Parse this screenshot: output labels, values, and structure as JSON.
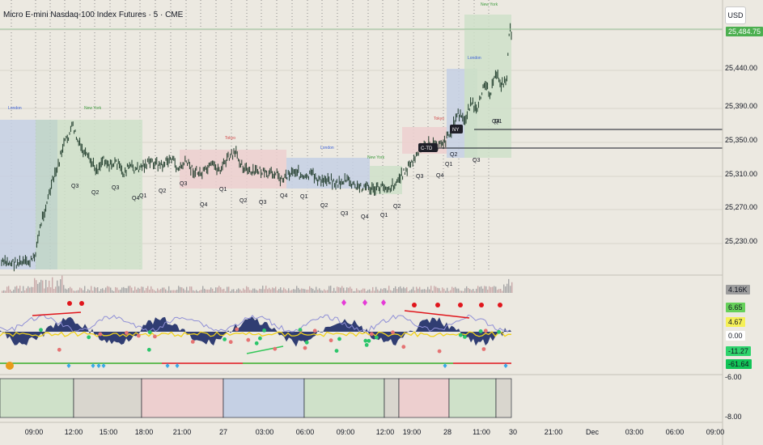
{
  "header": {
    "title": "Micro E-mini Nasdaq-100 Index Futures · 5 · CME"
  },
  "toolbar": {
    "currency": "USD"
  },
  "price_axis": {
    "labels": [
      "25,440.00",
      "25,390.00",
      "25,350.00",
      "25,310.00",
      "25,270.00",
      "25,230.00"
    ],
    "current_price_badge": "25,484.75"
  },
  "indicator_axis": {
    "volume_badge": "4.16K",
    "values": [
      {
        "text": "6.65",
        "bg": "#66d05a",
        "fg": "#131722"
      },
      {
        "text": "4.67",
        "bg": "#f5f056",
        "fg": "#131722"
      },
      {
        "text": "0.00",
        "bg": "#ffffff",
        "fg": "#131722"
      },
      {
        "text": "-11.27",
        "bg": "#2fd36d",
        "fg": "#131722"
      },
      {
        "text": "-61.64",
        "bg": "#11c457",
        "fg": "#131722"
      }
    ],
    "plain": [
      "-6.00",
      "-8.00"
    ]
  },
  "time_axis": [
    "09:00",
    "12:00",
    "15:00",
    "18:00",
    "21:00",
    "27",
    "03:00",
    "06:00",
    "09:00",
    "12:00",
    "19:00",
    "28",
    "11:00",
    "30",
    "21:00",
    "Dec",
    "03:00",
    "06:00",
    "09:00"
  ],
  "session_labels": [
    "London",
    "New York",
    "Tokyo",
    "London",
    "New York",
    "Tokyo",
    "London",
    "New York"
  ],
  "quarter_labels": [
    "Q3",
    "Q2",
    "Q3",
    "Q4",
    "Q1",
    "Q2",
    "Q3",
    "Q4",
    "Q1",
    "Q2",
    "Q3",
    "Q4",
    "Q1",
    "Q2",
    "Q3",
    "Q4",
    "Q1",
    "Q2",
    "Q3",
    "Q4",
    "Q1",
    "Q2",
    "Q3",
    "Q4",
    "Q1"
  ],
  "level_tags": [
    "C-TD",
    "NY"
  ],
  "colors": {
    "background": "#ece9e1",
    "london_zone": "#c5d0e4",
    "newyork_zone": "#cfe1c9",
    "tokyo_zone": "#edcfcf",
    "candle": "#1f3b2a",
    "oscillator_fill": "#1c2a66",
    "signal_red": "#e0161c",
    "signal_magenta": "#e53ad6",
    "signal_cyan": "#3aa9e8",
    "signal_orange": "#e89b1a"
  }
}
